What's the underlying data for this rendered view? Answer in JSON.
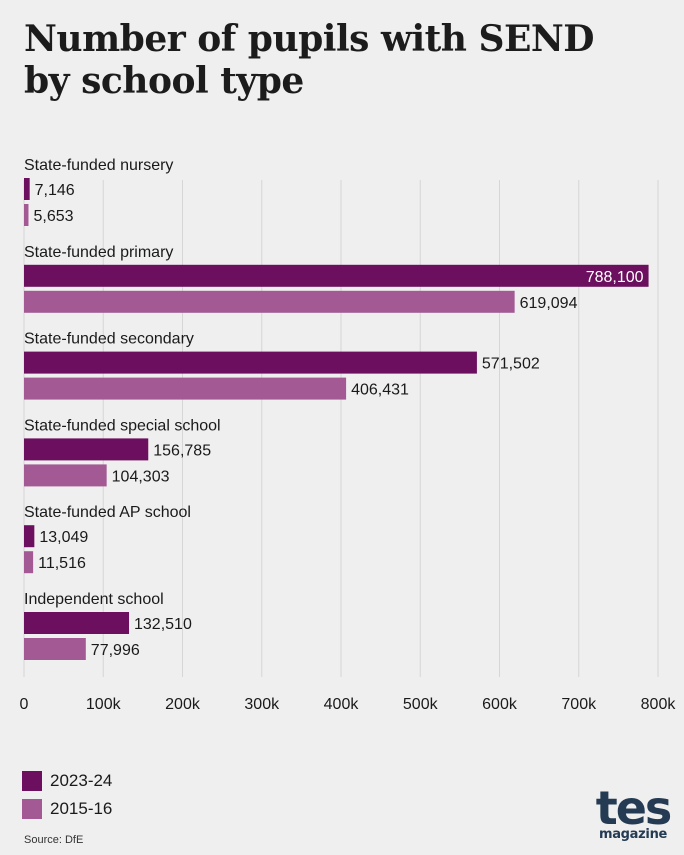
{
  "chart_data": {
    "type": "bar",
    "orientation": "horizontal",
    "title": "Number of pupils with SEND by school type",
    "categories": [
      "State-funded nursery",
      "State-funded primary",
      "State-funded secondary",
      "State-funded special school",
      "State-funded AP school",
      "Independent school"
    ],
    "series": [
      {
        "name": "2023-24",
        "color": "#6b0f5e",
        "values": [
          7146,
          788100,
          571502,
          156785,
          13049,
          132510
        ]
      },
      {
        "name": "2015-16",
        "color": "#a35a94",
        "values": [
          5653,
          619094,
          406431,
          104303,
          11516,
          77996
        ]
      }
    ],
    "value_labels": [
      [
        "7,146",
        "788,100",
        "571,502",
        "156,785",
        "13,049",
        "132,510"
      ],
      [
        "5,653",
        "619,094",
        "406,431",
        "104,303",
        "11,516",
        "77,996"
      ]
    ],
    "xlim": [
      0,
      800000
    ],
    "xticks": [
      0,
      100000,
      200000,
      300000,
      400000,
      500000,
      600000,
      700000,
      800000
    ],
    "xtick_labels": [
      "0",
      "100k",
      "200k",
      "300k",
      "400k",
      "500k",
      "600k",
      "700k",
      "800k"
    ],
    "grid": true,
    "legend_position": "bottom-left"
  },
  "title_line1": "Number of pupils with SEND",
  "title_line2": "by school type",
  "source": "Source: DfE",
  "logo": {
    "main": "tes",
    "sub": "magazine"
  }
}
